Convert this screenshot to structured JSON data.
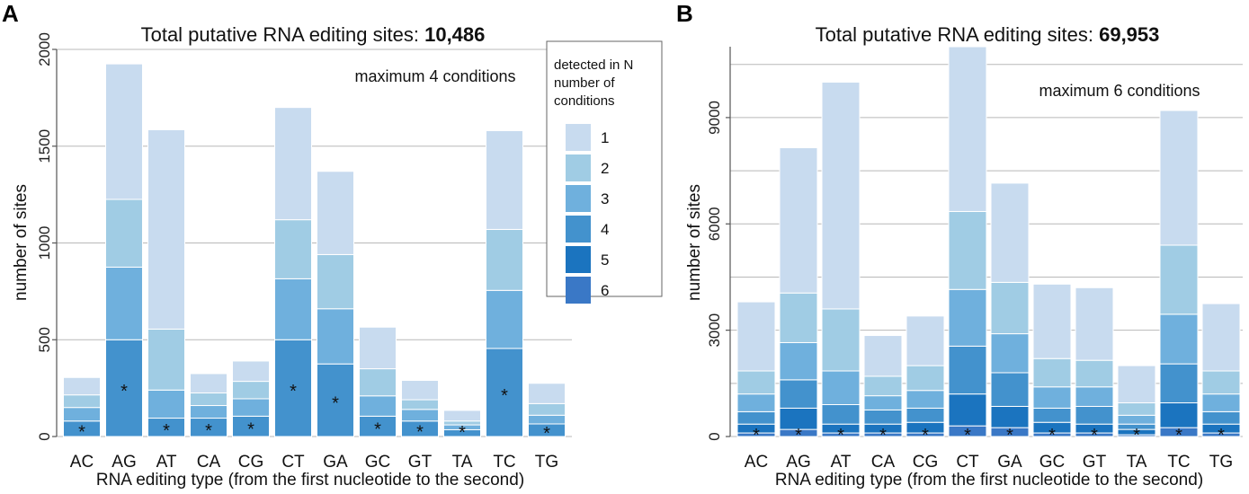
{
  "colors": {
    "levels": [
      "#c8dbef",
      "#a0cce4",
      "#6fb0dd",
      "#4392cd",
      "#1b74bf",
      "#3a78c6"
    ]
  },
  "legend": {
    "title_lines": [
      "detected in N",
      "number of",
      "conditions"
    ],
    "labels": [
      "1",
      "2",
      "3",
      "4",
      "5",
      "6"
    ]
  },
  "chart_data": [
    {
      "type": "bar",
      "stacked": true,
      "panel": "A",
      "title": "Total putative RNA editing sites: ",
      "title_value": "10,486",
      "annotation": "maximum 4 conditions",
      "xlabel": "RNA editing type (from the first nucleotide to the second)",
      "ylabel": "number of sites",
      "ylim": [
        0,
        2000
      ],
      "yticks": [
        "0",
        "500",
        "1000",
        "1500",
        "2000"
      ],
      "ytick_values": [
        0,
        500,
        1000,
        1500,
        2000
      ],
      "grid": true,
      "categories": [
        "AC",
        "AG",
        "AT",
        "CA",
        "CG",
        "CT",
        "GA",
        "GC",
        "GT",
        "TA",
        "TC",
        "TG"
      ],
      "significant": [
        true,
        true,
        true,
        true,
        true,
        true,
        true,
        true,
        true,
        true,
        true,
        true
      ],
      "series": [
        {
          "name": "4",
          "values": [
            80,
            500,
            95,
            95,
            105,
            500,
            375,
            105,
            80,
            35,
            455,
            65
          ]
        },
        {
          "name": "3",
          "values": [
            70,
            375,
            145,
            65,
            90,
            315,
            285,
            105,
            60,
            25,
            300,
            45
          ]
        },
        {
          "name": "2",
          "values": [
            65,
            350,
            315,
            65,
            90,
            305,
            280,
            140,
            50,
            20,
            315,
            60
          ]
        },
        {
          "name": "1",
          "values": [
            90,
            700,
            1030,
            100,
            105,
            580,
            430,
            215,
            100,
            55,
            510,
            105
          ]
        }
      ]
    },
    {
      "type": "bar",
      "stacked": true,
      "panel": "B",
      "title": "Total putative RNA editing sites: ",
      "title_value": "69,953",
      "annotation": "maximum 6 conditions",
      "xlabel": "RNA editing type (from the first nucleotide to the second)",
      "ylabel": "number of sites",
      "ylim": [
        0,
        11000
      ],
      "yticks": [
        "0",
        "3000",
        "6000",
        "9000"
      ],
      "ytick_values": [
        0,
        3000,
        6000,
        9000
      ],
      "grid_values": [
        0,
        1500,
        3000,
        4500,
        6000,
        7500,
        9000,
        10500
      ],
      "grid": true,
      "categories": [
        "AC",
        "AG",
        "AT",
        "CA",
        "CG",
        "CT",
        "GA",
        "GC",
        "GT",
        "TA",
        "TC",
        "TG"
      ],
      "significant": [
        true,
        true,
        true,
        true,
        true,
        true,
        true,
        true,
        true,
        true,
        true,
        true
      ],
      "series": [
        {
          "name": "6",
          "values": [
            100,
            200,
            100,
            100,
            100,
            300,
            250,
            100,
            100,
            50,
            250,
            100
          ]
        },
        {
          "name": "5",
          "values": [
            250,
            600,
            250,
            250,
            300,
            900,
            600,
            300,
            250,
            150,
            700,
            250
          ]
        },
        {
          "name": "4",
          "values": [
            350,
            800,
            550,
            400,
            400,
            1350,
            950,
            400,
            500,
            150,
            1100,
            350
          ]
        },
        {
          "name": "3",
          "values": [
            500,
            1050,
            950,
            400,
            500,
            1600,
            1100,
            600,
            550,
            250,
            1400,
            500
          ]
        },
        {
          "name": "2",
          "values": [
            650,
            1400,
            1750,
            550,
            700,
            2200,
            1450,
            800,
            750,
            350,
            1950,
            650
          ]
        },
        {
          "name": "1",
          "values": [
            1950,
            4100,
            6400,
            1150,
            1400,
            4650,
            2800,
            2100,
            2050,
            1050,
            3800,
            1900
          ]
        }
      ]
    }
  ]
}
